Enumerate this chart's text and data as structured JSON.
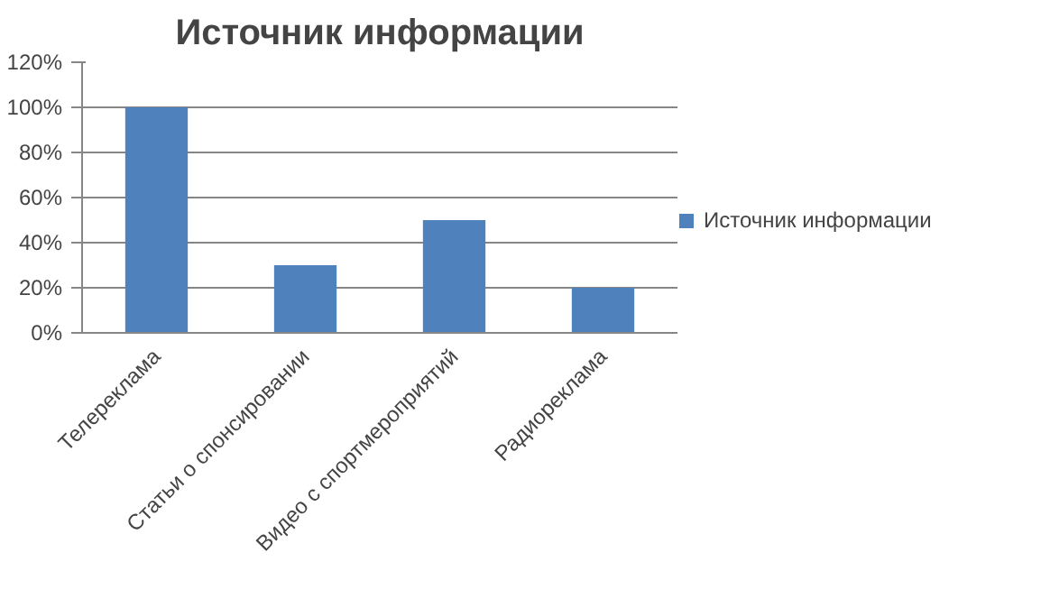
{
  "chart_data": {
    "type": "bar",
    "title": "Источник информации",
    "categories": [
      "Телереклама",
      "Статьи о спонсировании",
      "Видео с спортмероприятий",
      "Радиореклама"
    ],
    "series": [
      {
        "name": "Источник информации",
        "color": "#4f81bd",
        "values": [
          100,
          30,
          50,
          20
        ]
      }
    ],
    "ylim": [
      0,
      120
    ],
    "yticks": [
      {
        "value": 0,
        "label": "0%"
      },
      {
        "value": 20,
        "label": "20%"
      },
      {
        "value": 40,
        "label": "40%"
      },
      {
        "value": 60,
        "label": "60%"
      },
      {
        "value": 80,
        "label": "80%"
      },
      {
        "value": 100,
        "label": "100%"
      },
      {
        "value": 120,
        "label": "120%"
      }
    ],
    "grid": "y",
    "legend": "right"
  }
}
